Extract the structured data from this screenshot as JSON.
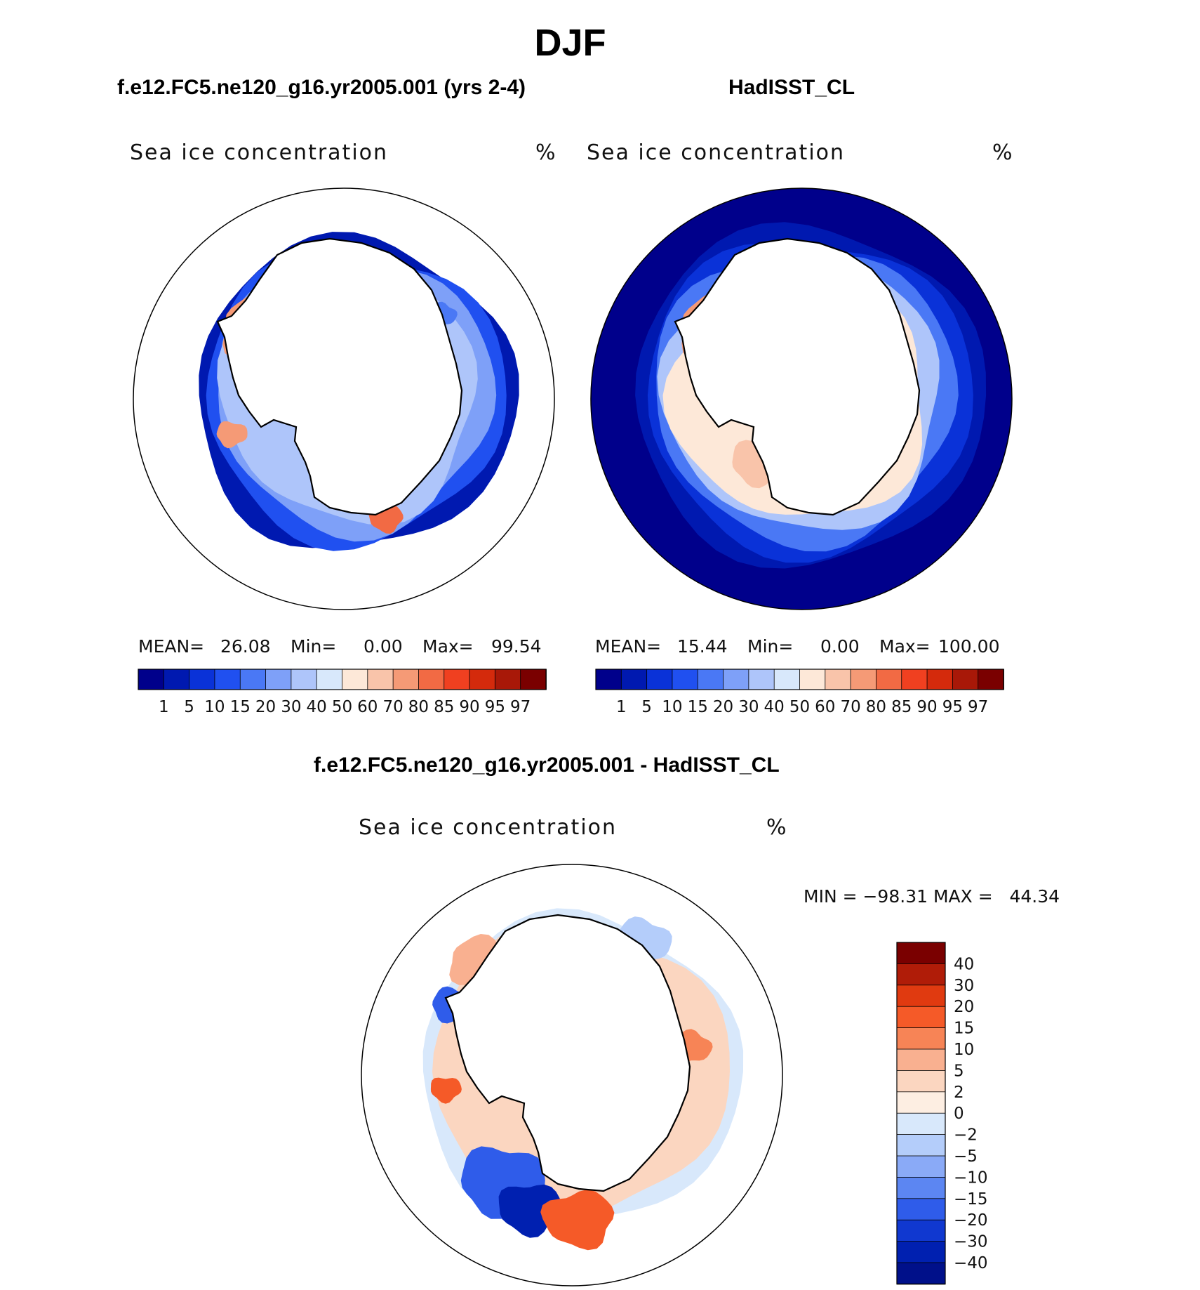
{
  "figure": {
    "season": "DJF",
    "panel_a_title": "f.e12.FC5.ne120_g16.yr2005.001 (yrs 2-4)",
    "panel_b_title": "HadISST_CL",
    "diff_title": "f.e12.FC5.ne120_g16.yr2005.001 - HadISST_CL"
  },
  "panels": [
    {
      "id": "model",
      "variable": "Sea ice concentration",
      "units": "%",
      "stats": {
        "mean_label": "MEAN=",
        "mean": "26.08",
        "min_label": "Min=",
        "min": "0.00",
        "max_label": "Max=",
        "max": "99.54"
      }
    },
    {
      "id": "obs",
      "variable": "Sea ice concentration",
      "units": "%",
      "stats": {
        "mean_label": "MEAN=",
        "mean": "15.44",
        "min_label": "Min=",
        "min": "0.00",
        "max_label": "Max=",
        "max": "100.00"
      }
    }
  ],
  "diff_panel": {
    "variable": "Sea ice concentration",
    "units": "%",
    "minmax": "MIN = −98.31 MAX =   44.34"
  },
  "colorbar_levels": {
    "labels": [
      "1",
      "5",
      "10",
      "15",
      "20",
      "30",
      "40",
      "50",
      "60",
      "70",
      "80",
      "85",
      "90",
      "95",
      "97"
    ],
    "colors": [
      "#00008b",
      "#0019b0",
      "#0a32d8",
      "#2050f0",
      "#4a78f5",
      "#7ea0f8",
      "#aec5fa",
      "#d8e8fb",
      "#fde8d8",
      "#f9c4aa",
      "#f59a76",
      "#f26a44",
      "#f04020",
      "#d42a0c",
      "#a81808",
      "#7a0000"
    ]
  },
  "diff_colorbar": {
    "labels": [
      "40",
      "30",
      "20",
      "15",
      "10",
      "5",
      "2",
      "0",
      "−2",
      "−5",
      "−10",
      "−15",
      "−20",
      "−30",
      "−40"
    ],
    "colors": [
      "#7a0000",
      "#b01c08",
      "#e03a10",
      "#f55a28",
      "#f78456",
      "#f9b090",
      "#fbd6c0",
      "#fdeee2",
      "#d8e8fb",
      "#b4cdfa",
      "#8aaaf7",
      "#5c86f2",
      "#2f5cea",
      "#1038d0",
      "#0020b0",
      "#00108a"
    ]
  },
  "map_palette": {
    "ocean_background": "#00008b",
    "land": "#ffffff",
    "coastline": "#000000"
  }
}
